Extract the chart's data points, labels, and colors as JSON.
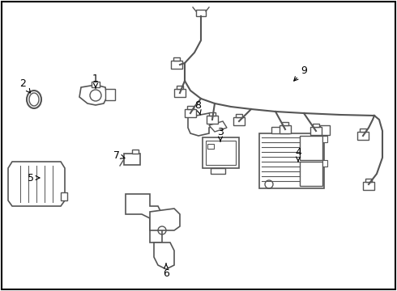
{
  "background_color": "#ffffff",
  "line_color": "#555555",
  "label_color": "#000000",
  "border_color": "#000000",
  "figsize": [
    4.9,
    3.6
  ],
  "dpi": 100,
  "labels": {
    "1": [
      118,
      112,
      118,
      97
    ],
    "2": [
      42,
      118,
      28,
      103
    ],
    "3": [
      272,
      182,
      272,
      167
    ],
    "4": [
      368,
      205,
      368,
      190
    ],
    "5": [
      55,
      220,
      40,
      220
    ],
    "6": [
      205,
      318,
      205,
      333
    ],
    "7": [
      162,
      195,
      148,
      195
    ],
    "8": [
      248,
      148,
      248,
      133
    ],
    "9": [
      358,
      105,
      373,
      90
    ]
  }
}
